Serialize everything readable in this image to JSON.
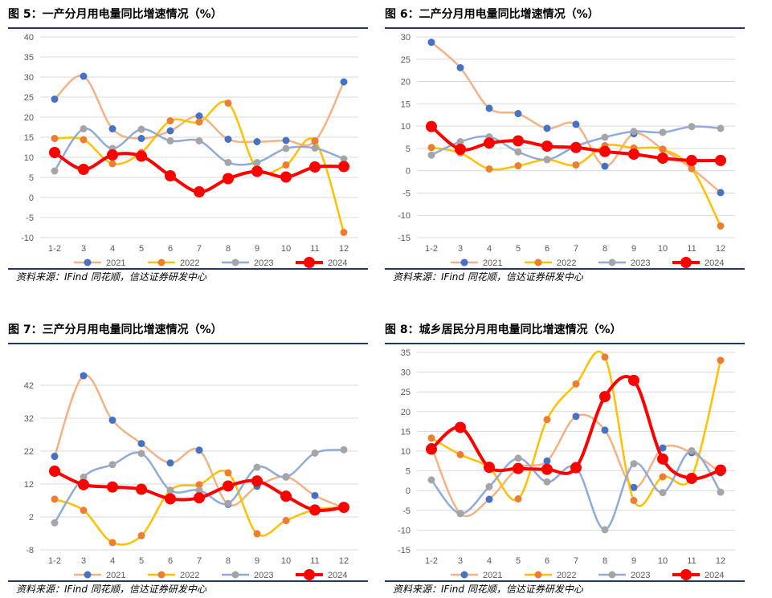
{
  "source_label": "资料来源：IFind 同花顺，信达证券研发中心",
  "colors": {
    "s2021": "#f4b183",
    "s2022": "#ffc000",
    "s2023": "#8faadc",
    "s2024": "#ff0000",
    "m2021": "#4472c4",
    "m2022": "#ed7d31",
    "m2023": "#a5a5a5",
    "m2024": "#ff0000"
  },
  "chart_data": [
    {
      "type": "line",
      "title": "图 5：一产分月用电量同比增速情况（%）",
      "categories": [
        "1-2",
        "3",
        "4",
        "5",
        "6",
        "7",
        "8",
        "9",
        "10",
        "11",
        "12"
      ],
      "ylim": [
        -10,
        40
      ],
      "yticks": [
        "40",
        "35",
        "30",
        "25",
        "20",
        "15",
        "10",
        "5",
        "0",
        "-5",
        "-10"
      ],
      "series": [
        {
          "name": "2021",
          "values": [
            24.5,
            30.2,
            17.1,
            14.7,
            16.6,
            20.3,
            14.5,
            13.9,
            14.2,
            14.0,
            28.8
          ]
        },
        {
          "name": "2022",
          "values": [
            14.7,
            14.4,
            8.4,
            11.2,
            19.1,
            18.8,
            23.5,
            7.1,
            8.1,
            14.1,
            -8.7
          ]
        },
        {
          "name": "2023",
          "values": [
            6.6,
            17.1,
            12.2,
            17.0,
            14.1,
            14.1,
            8.7,
            8.7,
            12.2,
            12.3,
            9.6
          ]
        },
        {
          "name": "2024",
          "values": [
            11.2,
            7.0,
            10.6,
            10.3,
            5.4,
            1.4,
            4.7,
            6.5,
            5.1,
            7.6,
            7.7
          ]
        }
      ]
    },
    {
      "type": "line",
      "title": "图 6：二产分月用电量同比增速情况（%）",
      "categories": [
        "1-2",
        "3",
        "4",
        "5",
        "6",
        "7",
        "8",
        "9",
        "10",
        "11",
        "12"
      ],
      "ylim": [
        -15,
        30
      ],
      "yticks": [
        "30",
        "25",
        "20",
        "15",
        "10",
        "5",
        "0",
        "-5",
        "-10",
        "-15"
      ],
      "series": [
        {
          "name": "2021",
          "values": [
            28.8,
            23.1,
            14.0,
            12.8,
            9.5,
            10.4,
            1.0,
            8.3,
            4.8,
            0.5,
            -4.9
          ]
        },
        {
          "name": "2022",
          "values": [
            5.2,
            4.0,
            0.4,
            1.1,
            2.5,
            1.3,
            5.6,
            5.1,
            4.8,
            0.5,
            -12.4
          ]
        },
        {
          "name": "2023",
          "values": [
            3.5,
            6.5,
            7.6,
            4.2,
            2.5,
            5.5,
            7.5,
            8.8,
            8.6,
            9.9,
            9.5
          ]
        },
        {
          "name": "2024",
          "values": [
            9.9,
            4.8,
            6.2,
            6.7,
            5.5,
            5.2,
            4.3,
            3.7,
            2.8,
            2.3,
            2.3
          ]
        }
      ]
    },
    {
      "type": "line",
      "title": "图 7：三产分月用电量同比增速情况（%）",
      "categories": [
        "1-2",
        "3",
        "4",
        "5",
        "6",
        "7",
        "8",
        "9",
        "10",
        "11",
        "12"
      ],
      "ylim": [
        -8,
        52
      ],
      "yticks": [
        "42",
        "32",
        "22",
        "12",
        "2",
        "-8"
      ],
      "series": [
        {
          "name": "2021",
          "values": [
            20.4,
            44.9,
            31.4,
            24.3,
            18.4,
            22.3,
            5.8,
            11.3,
            14.2,
            8.5,
            4.8
          ]
        },
        {
          "name": "2022",
          "values": [
            7.4,
            4.0,
            -5.8,
            -3.7,
            10.1,
            11.8,
            15.4,
            -3.1,
            0.9,
            4.2,
            4.9
          ]
        },
        {
          "name": "2023",
          "values": [
            0.2,
            14.1,
            17.9,
            21.3,
            10.1,
            10.1,
            6.1,
            17.1,
            14.1,
            21.4,
            22.4
          ]
        },
        {
          "name": "2024",
          "values": [
            15.9,
            11.8,
            11.1,
            10.4,
            7.5,
            7.8,
            11.4,
            12.9,
            8.3,
            4.1,
            4.9
          ]
        }
      ]
    },
    {
      "type": "line",
      "title": "图 8：城乡居民分月用电量同比增速情况（%）",
      "categories": [
        "1-2",
        "3",
        "4",
        "5",
        "6",
        "7",
        "8",
        "9",
        "10",
        "11",
        "12"
      ],
      "ylim": [
        -15,
        35
      ],
      "yticks": [
        "35",
        "30",
        "25",
        "20",
        "15",
        "10",
        "5",
        "0",
        "-5",
        "-10",
        "-15"
      ],
      "series": [
        {
          "name": "2021",
          "values": [
            11.2,
            -5.8,
            -2.2,
            5.7,
            7.5,
            18.8,
            15.3,
            0.8,
            10.8,
            9.6,
            4.5
          ]
        },
        {
          "name": "2022",
          "values": [
            13.3,
            9.1,
            5.8,
            -2.1,
            18.0,
            27.0,
            33.8,
            -2.5,
            3.5,
            3.5,
            33.0
          ]
        },
        {
          "name": "2023",
          "values": [
            2.7,
            -5.8,
            1.0,
            8.2,
            2.2,
            5.8,
            -9.9,
            6.8,
            -0.5,
            10.1,
            -0.4
          ]
        },
        {
          "name": "2024",
          "values": [
            10.5,
            16.0,
            5.9,
            5.6,
            5.4,
            5.8,
            23.8,
            27.9,
            8.0,
            3.1,
            5.2
          ]
        }
      ]
    }
  ]
}
